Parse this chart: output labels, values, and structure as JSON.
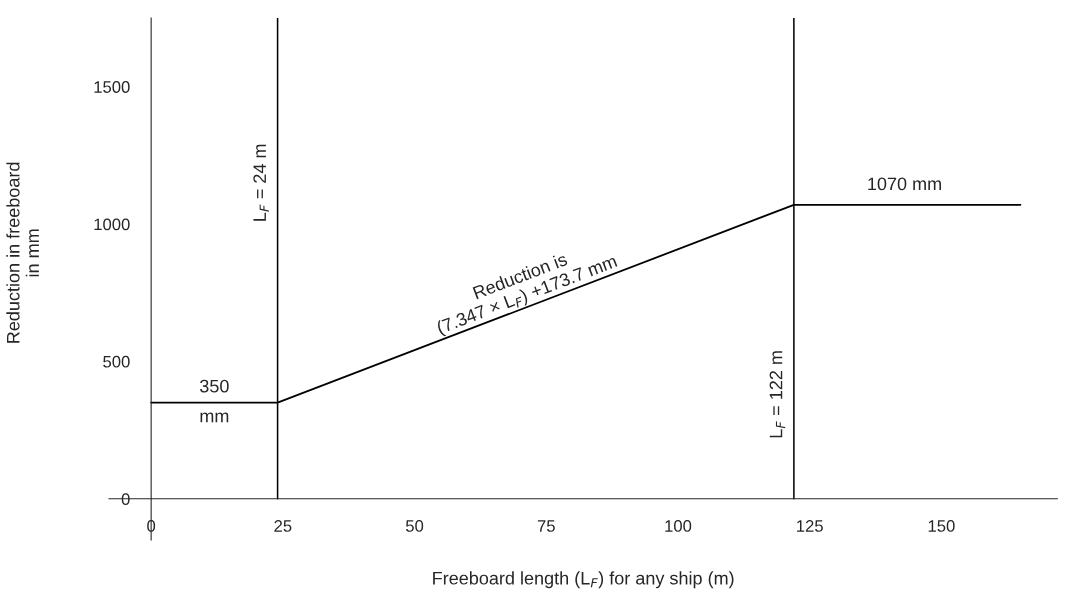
{
  "chart_data": {
    "type": "line",
    "xlabel": "Freeboard length (L$_{F}$) for any ship (m)",
    "ylabel": "Reduction in freeboard\nin mm",
    "x": [
      0,
      24,
      122,
      165
    ],
    "series": [
      {
        "color": "#000000",
        "values": [
          350,
          350,
          1070,
          1070
        ]
      }
    ],
    "xlim": [
      -8,
      172
    ],
    "ylim": [
      -150,
      1750
    ],
    "xticks": [
      0,
      25,
      50,
      75,
      100,
      125,
      150
    ],
    "yticks": [
      0,
      500,
      1000,
      1500
    ],
    "ref_lines": [
      {
        "axis": "x",
        "value": 24,
        "label": "L$_{F}$ = 24 m",
        "color": "#000000"
      },
      {
        "axis": "x",
        "value": 122,
        "label": "L$_{F}$ = 122 m",
        "color": "#000000"
      }
    ],
    "annotations": [
      {
        "text": "350\nmm",
        "x": 12,
        "y": 350
      },
      {
        "text": "1070 mm",
        "x": 143,
        "y": 1070
      },
      {
        "text": "Reduction is\n(7.347 × L$_{F}$) +173.7 mm",
        "x": 72,
        "y": 710
      }
    ],
    "grid": false,
    "marker": "none",
    "line_style": "solid"
  }
}
